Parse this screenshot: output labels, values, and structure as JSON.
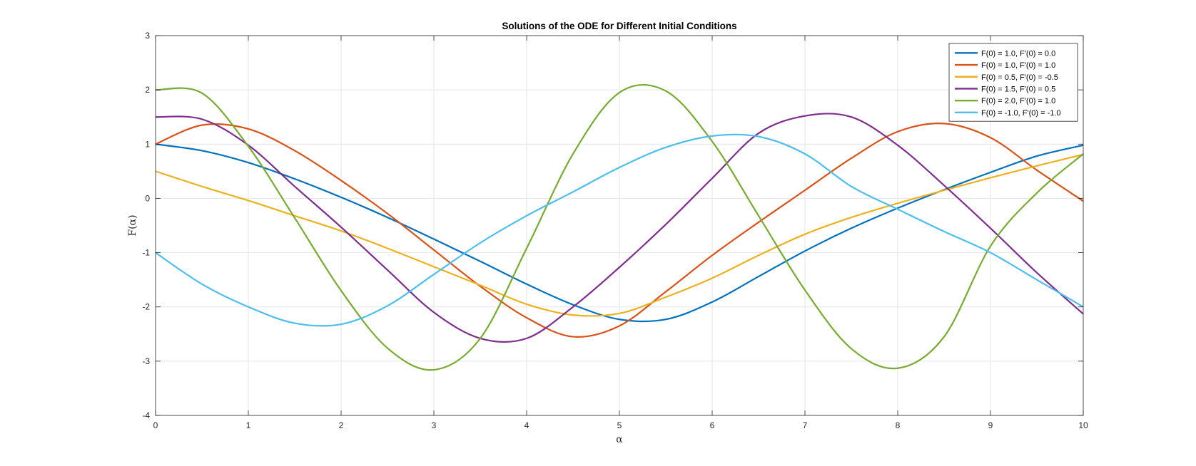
{
  "chart_data": {
    "type": "line",
    "title": "Solutions of the ODE for Different Initial Conditions",
    "xlabel": "α",
    "ylabel": "F(α)",
    "xlim": [
      0,
      10
    ],
    "ylim": [
      -4,
      3
    ],
    "xticks": [
      "0",
      "1",
      "2",
      "3",
      "4",
      "5",
      "6",
      "7",
      "8",
      "9",
      "10"
    ],
    "yticks": [
      "-4",
      "-3",
      "-2",
      "-1",
      "0",
      "1",
      "2",
      "3"
    ],
    "grid": true,
    "legend_position": "top-right",
    "x": [
      0,
      0.5,
      1,
      1.5,
      2,
      2.5,
      3,
      3.5,
      4,
      4.5,
      5,
      5.5,
      6,
      6.5,
      7,
      7.5,
      8,
      8.5,
      9,
      9.5,
      10
    ],
    "series": [
      {
        "name": "F(0) = 1.0, F'(0) = 0.0",
        "color": "#0072BD",
        "values": [
          1.0,
          0.88,
          0.66,
          0.36,
          0.02,
          -0.35,
          -0.75,
          -1.16,
          -1.58,
          -1.96,
          -2.23,
          -2.23,
          -1.91,
          -1.44,
          -0.97,
          -0.55,
          -0.18,
          0.16,
          0.48,
          0.78,
          0.98
        ]
      },
      {
        "name": "F(0) = 1.0, F'(0) = 1.0",
        "color": "#D95319",
        "values": [
          1.0,
          1.35,
          1.28,
          0.88,
          0.33,
          -0.28,
          -0.95,
          -1.62,
          -2.2,
          -2.55,
          -2.35,
          -1.72,
          -1.05,
          -0.44,
          0.15,
          0.74,
          1.23,
          1.38,
          1.12,
          0.52,
          -0.05
        ]
      },
      {
        "name": "F(0) = 0.5, F'(0) = -0.5",
        "color": "#EDB120",
        "values": [
          0.5,
          0.22,
          -0.04,
          -0.32,
          -0.6,
          -0.92,
          -1.26,
          -1.6,
          -1.95,
          -2.15,
          -2.12,
          -1.82,
          -1.47,
          -1.05,
          -0.66,
          -0.35,
          -0.09,
          0.15,
          0.38,
          0.6,
          0.81
        ]
      },
      {
        "name": "F(0) = 1.5, F'(0) = 0.5",
        "color": "#7E2F8E",
        "values": [
          1.5,
          1.46,
          0.98,
          0.22,
          -0.53,
          -1.32,
          -2.1,
          -2.58,
          -2.58,
          -2.0,
          -1.27,
          -0.48,
          0.37,
          1.2,
          1.52,
          1.5,
          0.98,
          0.24,
          -0.55,
          -1.37,
          -2.13
        ]
      },
      {
        "name": "F(0) = 2.0, F'(0) = 1.0",
        "color": "#77AC30",
        "values": [
          2.0,
          1.94,
          0.96,
          -0.36,
          -1.7,
          -2.76,
          -3.16,
          -2.58,
          -0.92,
          0.82,
          1.95,
          1.98,
          1.05,
          -0.32,
          -1.69,
          -2.77,
          -3.13,
          -2.55,
          -0.88,
          0.1,
          0.82
        ]
      },
      {
        "name": "F(0) = -1.0, F'(0) = -1.0",
        "color": "#4DBEEE",
        "values": [
          -1.0,
          -1.58,
          -2.0,
          -2.3,
          -2.32,
          -1.98,
          -1.4,
          -0.82,
          -0.32,
          0.12,
          0.57,
          0.94,
          1.15,
          1.14,
          0.82,
          0.22,
          -0.2,
          -0.61,
          -1.0,
          -1.5,
          -2.0
        ]
      }
    ]
  }
}
